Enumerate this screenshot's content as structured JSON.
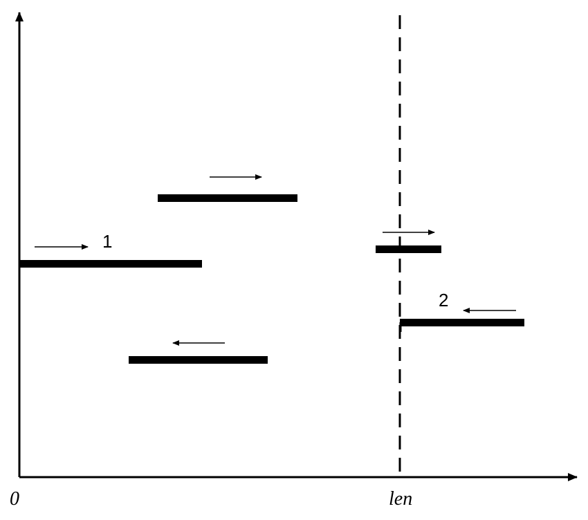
{
  "diagram": {
    "labels": {
      "segment_1": "1",
      "segment_2": "2",
      "origin": "0",
      "len": "len"
    },
    "colors": {
      "ink": "#000000",
      "background": "#ffffff"
    }
  }
}
